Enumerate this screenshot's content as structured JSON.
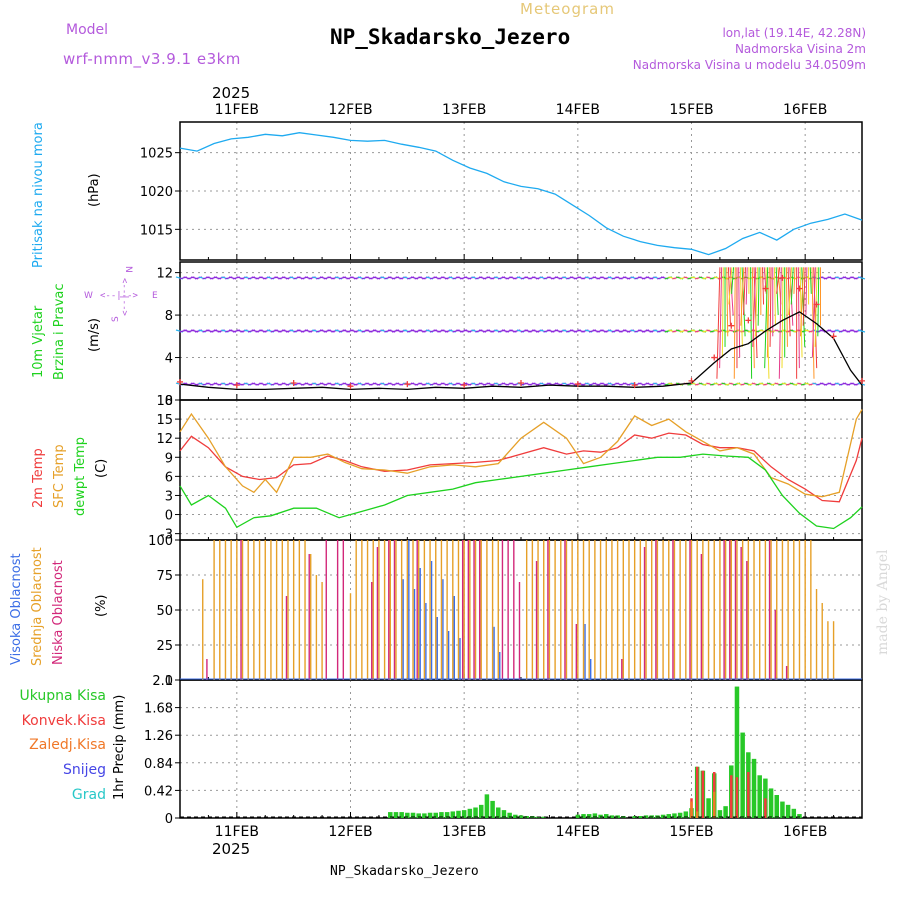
{
  "header": {
    "meteogram_label": "Meteogram",
    "model_label": "Model",
    "model_name": "wrf-nmm_v3.9.1 e3km",
    "title": "NP_Skadarsko_Jezero",
    "coords": "lon,lat (19.14E, 42.28N)",
    "elevation": "Nadmorska Visina 2m",
    "model_elevation": "Nadmorska Visina u modelu 34.0509m",
    "year": "2025",
    "bottom_title": "NP_Skadarsko_Jezero",
    "watermark": "made by Angel"
  },
  "colors": {
    "pressure": "#1eaaf0",
    "temp2m": "#f03c3c",
    "sfc": "#e6a028",
    "dewpt": "#1ed21e",
    "high_cloud": "#3c6ee6",
    "mid_cloud": "#e6a028",
    "low_cloud": "#d2287a",
    "wind_barb": "#8c28dc",
    "gust": "#f03c3c",
    "conv": "#f03c3c",
    "snow": "#4646e6",
    "grad": "#28c8c8",
    "total": "#28c828",
    "nonconv": "#f07828"
  },
  "chart_data": [
    {
      "type": "line",
      "panel": "pressure",
      "title": "Pritisak na nivou mora",
      "ylabel": "(hPa)",
      "ylim": [
        1011,
        1029
      ],
      "yticks": [
        1015,
        1020,
        1025
      ],
      "xlim": [
        0,
        6
      ],
      "series": [
        {
          "name": "Pritisak na nivou mora",
          "x": [
            0,
            0.15,
            0.3,
            0.45,
            0.6,
            0.75,
            0.9,
            1.05,
            1.2,
            1.35,
            1.5,
            1.65,
            1.8,
            1.95,
            2.1,
            2.25,
            2.4,
            2.55,
            2.7,
            2.85,
            3.0,
            3.15,
            3.3,
            3.45,
            3.6,
            3.75,
            3.9,
            4.05,
            4.2,
            4.35,
            4.5,
            4.65,
            4.8,
            4.95,
            5.1,
            5.25,
            5.4,
            5.55,
            5.7,
            5.85,
            6.0
          ],
          "values": [
            1025.6,
            1025.2,
            1026.2,
            1026.8,
            1027.0,
            1027.4,
            1027.2,
            1027.6,
            1027.3,
            1027.0,
            1026.6,
            1026.5,
            1026.6,
            1026.1,
            1025.7,
            1025.2,
            1024.0,
            1023.0,
            1022.3,
            1021.2,
            1020.6,
            1020.3,
            1019.6,
            1018.2,
            1016.8,
            1015.2,
            1014.1,
            1013.4,
            1012.9,
            1012.6,
            1012.4,
            1011.7,
            1012.5,
            1013.8,
            1014.6,
            1013.6,
            1015.0,
            1015.8,
            1016.3,
            1017.0,
            1016.2
          ]
        }
      ]
    },
    {
      "type": "line",
      "panel": "wind",
      "title": "10m Vjetar Brzina i Pravac",
      "ylabel": "(m/s)",
      "ylim": [
        0,
        13
      ],
      "yticks": [
        0,
        4,
        8,
        12
      ],
      "xlim": [
        0,
        6
      ],
      "legend": [
        "N",
        "W",
        "E",
        "S"
      ],
      "legend_arrow_w": "<--|-->",
      "legend_arrow_n": "<--|-->",
      "series": [
        {
          "name": "10m wind speed",
          "x": [
            0,
            0.25,
            0.5,
            0.75,
            1.0,
            1.25,
            1.5,
            1.75,
            2.0,
            2.25,
            2.5,
            2.75,
            3.0,
            3.25,
            3.5,
            3.75,
            4.0,
            4.25,
            4.5,
            4.7,
            4.85,
            5.0,
            5.15,
            5.3,
            5.45,
            5.6,
            5.75,
            5.9,
            6.0
          ],
          "values": [
            1.5,
            1.2,
            1.0,
            1.0,
            1.1,
            1.2,
            1.0,
            1.1,
            1.0,
            1.2,
            1.1,
            1.3,
            1.2,
            1.4,
            1.3,
            1.3,
            1.2,
            1.3,
            1.6,
            3.5,
            4.8,
            5.3,
            6.5,
            7.5,
            8.3,
            7.2,
            5.8,
            2.8,
            1.4
          ]
        },
        {
          "name": "gusts",
          "x": [
            0,
            0.5,
            1.0,
            1.5,
            2.0,
            2.5,
            3.0,
            3.5,
            4.0,
            4.5,
            4.7,
            4.85,
            5.0,
            5.15,
            5.3,
            5.45,
            5.6,
            5.75,
            6.0
          ],
          "values": [
            1.7,
            1.4,
            1.6,
            1.3,
            1.5,
            1.4,
            1.6,
            1.5,
            1.4,
            1.8,
            4.0,
            7.0,
            7.5,
            10.5,
            11.5,
            10.5,
            9.0,
            6.0,
            1.8
          ]
        }
      ]
    },
    {
      "type": "line",
      "panel": "temperature",
      "title": "2m Temp / SFC Temp / dewpt Temp",
      "ylabel": "(C)",
      "ylim": [
        -4,
        18
      ],
      "yticks": [
        -3,
        0,
        3,
        6,
        9,
        12,
        15,
        18
      ],
      "xlim": [
        0,
        6
      ],
      "series": [
        {
          "name": "2m Temp",
          "x": [
            0,
            0.1,
            0.25,
            0.4,
            0.55,
            0.7,
            0.85,
            1.0,
            1.15,
            1.3,
            1.45,
            1.6,
            1.8,
            2.0,
            2.2,
            2.4,
            2.6,
            2.8,
            3.0,
            3.2,
            3.4,
            3.55,
            3.7,
            3.85,
            4.0,
            4.15,
            4.3,
            4.45,
            4.6,
            4.75,
            4.9,
            5.05,
            5.2,
            5.35,
            5.5,
            5.65,
            5.8,
            5.95,
            6.0
          ],
          "values": [
            10.0,
            12.3,
            10.5,
            7.5,
            6.0,
            5.5,
            5.8,
            7.8,
            8.0,
            9.2,
            8.5,
            7.5,
            6.8,
            7.0,
            7.8,
            8.0,
            8.2,
            8.5,
            9.5,
            10.5,
            9.5,
            10.0,
            9.8,
            10.5,
            12.5,
            12.0,
            12.8,
            12.5,
            11.0,
            10.5,
            10.5,
            10.0,
            7.5,
            5.5,
            4.0,
            2.2,
            2.0,
            8.5,
            12.0
          ]
        },
        {
          "name": "SFC Temp",
          "x": [
            0,
            0.1,
            0.25,
            0.4,
            0.55,
            0.65,
            0.75,
            0.85,
            1.0,
            1.15,
            1.3,
            1.45,
            1.6,
            1.8,
            2.0,
            2.2,
            2.4,
            2.6,
            2.8,
            3.0,
            3.2,
            3.4,
            3.55,
            3.7,
            3.85,
            4.0,
            4.15,
            4.3,
            4.45,
            4.6,
            4.75,
            4.9,
            5.05,
            5.2,
            5.35,
            5.5,
            5.65,
            5.8,
            5.95,
            6.0
          ],
          "values": [
            13.0,
            15.8,
            12.0,
            7.5,
            4.5,
            3.5,
            5.5,
            3.5,
            9.0,
            9.0,
            9.5,
            8.2,
            7.2,
            7.0,
            6.5,
            7.5,
            7.8,
            7.5,
            8.0,
            12.0,
            14.5,
            12.0,
            8.0,
            9.0,
            11.5,
            15.5,
            14.0,
            15.0,
            13.0,
            11.5,
            10.0,
            10.5,
            9.5,
            5.8,
            4.8,
            3.2,
            2.8,
            3.5,
            15.0,
            16.5
          ]
        },
        {
          "name": "dewpt Temp",
          "x": [
            0,
            0.1,
            0.25,
            0.4,
            0.5,
            0.65,
            0.8,
            1.0,
            1.2,
            1.4,
            1.6,
            1.8,
            2.0,
            2.2,
            2.4,
            2.6,
            2.8,
            3.0,
            3.2,
            3.4,
            3.6,
            3.8,
            4.0,
            4.2,
            4.4,
            4.6,
            4.8,
            5.0,
            5.15,
            5.3,
            5.45,
            5.6,
            5.75,
            5.9,
            6.0
          ],
          "values": [
            4.5,
            1.5,
            3.0,
            1.0,
            -2.0,
            -0.5,
            -0.2,
            1.0,
            1.0,
            -0.5,
            0.5,
            1.5,
            3.0,
            3.5,
            4.0,
            5.0,
            5.5,
            6.0,
            6.5,
            7.0,
            7.5,
            8.0,
            8.5,
            9.0,
            9.0,
            9.5,
            9.2,
            9.0,
            7.0,
            3.0,
            0.2,
            -1.8,
            -2.2,
            -0.5,
            1.2
          ]
        }
      ]
    },
    {
      "type": "bar",
      "panel": "clouds",
      "title": "Visoka / Srednja / Niska Oblacnost",
      "ylabel": "(%)",
      "ylim": [
        0,
        100
      ],
      "yticks": [
        0,
        25,
        50,
        75,
        100
      ],
      "xlim": [
        0,
        6
      ],
      "series": [
        {
          "name": "Visoka Oblacnost",
          "x": [
            1.95,
            2.0,
            2.05,
            2.1,
            2.15,
            2.2,
            2.25,
            2.3,
            2.35,
            2.4,
            2.45,
            2.75,
            2.8,
            3.55,
            3.6
          ],
          "values": [
            72,
            100,
            65,
            80,
            55,
            85,
            45,
            72,
            35,
            60,
            30,
            38,
            20,
            40,
            15
          ]
        },
        {
          "name": "Srednja Oblacnost",
          "x": [
            0.2,
            0.3,
            0.35,
            0.4,
            0.45,
            0.5,
            0.55,
            0.6,
            0.65,
            0.7,
            0.75,
            0.8,
            0.85,
            0.9,
            0.95,
            1.0,
            1.05,
            1.1,
            1.15,
            1.2,
            1.25,
            1.5,
            1.55,
            1.6,
            1.65,
            1.7,
            1.75,
            1.8,
            1.85,
            1.9,
            1.95,
            2.0,
            2.05,
            2.1,
            2.15,
            2.2,
            2.25,
            2.3,
            2.35,
            2.4,
            2.45,
            2.5,
            2.55,
            2.6,
            2.65,
            2.7,
            2.75,
            2.8,
            3.05,
            3.1,
            3.15,
            3.2,
            3.25,
            3.3,
            3.35,
            3.4,
            3.45,
            3.5,
            3.55,
            3.6,
            3.65,
            3.7,
            3.75,
            3.8,
            3.85,
            3.9,
            3.95,
            4.0,
            4.05,
            4.1,
            4.15,
            4.2,
            4.25,
            4.3,
            4.35,
            4.4,
            4.45,
            4.5,
            4.55,
            4.6,
            4.65,
            4.7,
            4.75,
            4.8,
            4.85,
            4.9,
            4.95,
            5.0,
            5.05,
            5.1,
            5.15,
            5.2,
            5.25,
            5.3,
            5.35,
            5.4,
            5.45,
            5.5,
            5.55,
            5.6,
            5.65,
            5.7,
            5.75
          ],
          "values": [
            72,
            100,
            100,
            100,
            100,
            100,
            100,
            100,
            100,
            100,
            100,
            100,
            100,
            100,
            100,
            100,
            100,
            100,
            90,
            75,
            70,
            62,
            100,
            100,
            100,
            100,
            100,
            100,
            100,
            100,
            100,
            100,
            100,
            100,
            100,
            100,
            100,
            100,
            100,
            100,
            100,
            100,
            100,
            100,
            100,
            100,
            100,
            100,
            100,
            100,
            100,
            100,
            100,
            100,
            100,
            100,
            100,
            100,
            100,
            100,
            100,
            100,
            100,
            100,
            100,
            100,
            100,
            100,
            100,
            100,
            100,
            100,
            100,
            100,
            100,
            100,
            100,
            100,
            100,
            100,
            100,
            100,
            100,
            100,
            100,
            100,
            100,
            100,
            100,
            100,
            100,
            100,
            100,
            100,
            100,
            100,
            100,
            100,
            100,
            65,
            55,
            42,
            42
          ]
        },
        {
          "name": "Niska Oblacnost",
          "x": [
            0.25,
            0.55,
            0.95,
            1.15,
            1.3,
            1.4,
            1.45,
            1.7,
            1.75,
            1.85,
            1.9,
            2.1,
            2.5,
            2.55,
            2.6,
            2.65,
            2.85,
            2.9,
            2.95,
            3.0,
            3.15,
            3.25,
            3.4,
            3.5,
            3.9,
            4.1,
            4.2,
            4.35,
            4.5,
            4.6,
            4.8,
            4.85,
            4.9,
            4.95,
            5.0,
            5.2,
            5.25,
            5.35
          ],
          "values": [
            15,
            100,
            60,
            90,
            100,
            100,
            100,
            70,
            95,
            100,
            100,
            100,
            100,
            100,
            100,
            100,
            100,
            100,
            100,
            70,
            85,
            100,
            100,
            40,
            15,
            95,
            100,
            100,
            100,
            90,
            100,
            100,
            100,
            95,
            85,
            100,
            50,
            10
          ]
        }
      ]
    },
    {
      "type": "bar",
      "panel": "precipitation",
      "title": "1hr Precip",
      "ylabel": "1hr Precip (mm)",
      "ylim": [
        0,
        2.1
      ],
      "yticks": [
        0,
        0.42,
        0.84,
        1.26,
        1.68,
        2.1
      ],
      "xlim": [
        0,
        6
      ],
      "legend": [
        "Ukupna Kisa",
        "Konvek.Kisa",
        "Zaledj.Kisa",
        "Snijeg",
        "Grad"
      ],
      "series": [
        {
          "name": "Ukupna Kisa",
          "x": [
            1.85,
            1.9,
            1.95,
            2.0,
            2.05,
            2.1,
            2.15,
            2.2,
            2.25,
            2.3,
            2.35,
            2.4,
            2.45,
            2.5,
            2.55,
            2.6,
            2.65,
            2.7,
            2.75,
            2.8,
            2.85,
            2.9,
            2.95,
            3.0,
            3.05,
            3.1,
            3.15,
            3.2,
            3.5,
            3.55,
            3.6,
            3.65,
            3.7,
            3.75,
            3.8,
            3.85,
            3.9,
            4.0,
            4.05,
            4.1,
            4.15,
            4.2,
            4.25,
            4.3,
            4.35,
            4.4,
            4.45,
            4.5,
            4.55,
            4.6,
            4.65,
            4.7,
            4.75,
            4.8,
            4.85,
            4.9,
            4.95,
            5.0,
            5.05,
            5.1,
            5.15,
            5.2,
            5.25,
            5.3,
            5.35,
            5.4,
            5.45
          ],
          "values": [
            0.09,
            0.09,
            0.09,
            0.08,
            0.08,
            0.07,
            0.07,
            0.08,
            0.08,
            0.09,
            0.09,
            0.1,
            0.11,
            0.12,
            0.14,
            0.16,
            0.2,
            0.36,
            0.26,
            0.16,
            0.12,
            0.08,
            0.05,
            0.04,
            0.03,
            0.03,
            0.02,
            0.02,
            0.05,
            0.06,
            0.06,
            0.07,
            0.05,
            0.06,
            0.04,
            0.04,
            0.03,
            0.03,
            0.03,
            0.04,
            0.04,
            0.04,
            0.05,
            0.06,
            0.07,
            0.08,
            0.1,
            0.15,
            0.78,
            0.72,
            0.3,
            0.68,
            0.12,
            0.18,
            0.8,
            2.0,
            1.3,
            1.0,
            0.9,
            0.65,
            0.6,
            0.45,
            0.35,
            0.25,
            0.2,
            0.14,
            0.06
          ]
        },
        {
          "name": "Konvek.Kisa",
          "x": [
            4.5,
            4.55,
            4.6,
            4.7,
            4.85,
            4.9,
            5.0,
            5.15
          ],
          "values": [
            0.3,
            0.78,
            0.72,
            0.7,
            0.65,
            0.62,
            0.7,
            0.3
          ]
        },
        {
          "name": "Zaledj.Kisa",
          "x": [
            4.5,
            4.55,
            4.7
          ],
          "values": [
            0.25,
            0.1,
            0.4
          ]
        }
      ]
    }
  ],
  "x_axis": {
    "date_labels": [
      "11FEB",
      "12FEB",
      "13FEB",
      "14FEB",
      "15FEB",
      "16FEB"
    ],
    "date_pos": [
      0.5,
      1.5,
      2.5,
      3.5,
      4.5,
      5.5
    ]
  }
}
